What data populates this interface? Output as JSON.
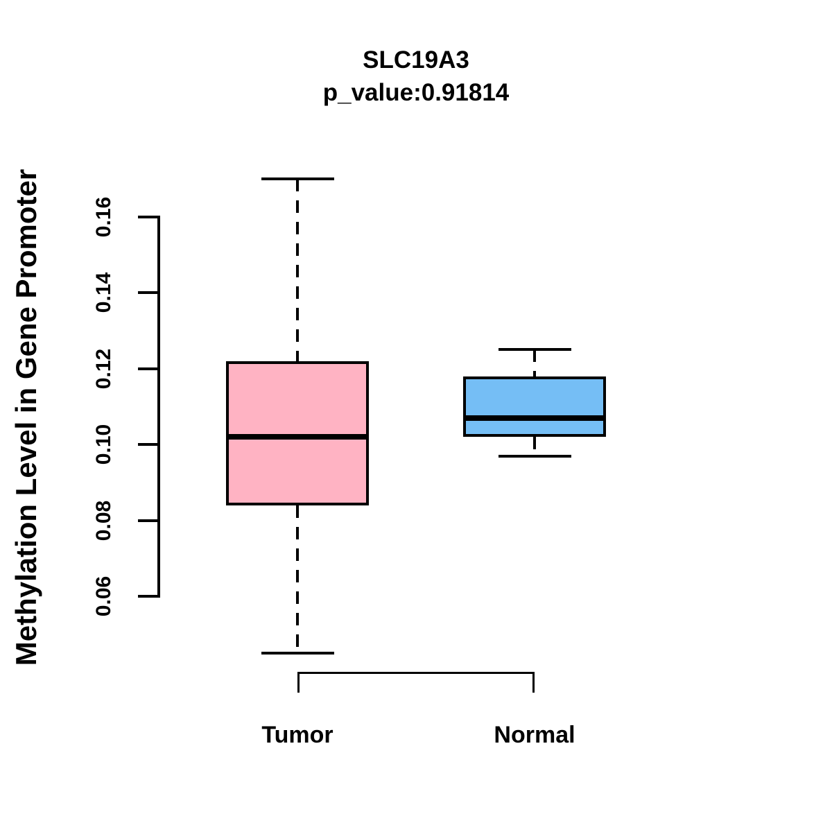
{
  "title": "SLC19A3",
  "subtitle": "p_value:0.91814",
  "y_axis": {
    "label": "Methylation Level in Gene Promoter",
    "ticks": [
      {
        "value": 0.16,
        "label": "0.16"
      },
      {
        "value": 0.14,
        "label": "0.14"
      },
      {
        "value": 0.12,
        "label": "0.12"
      },
      {
        "value": 0.1,
        "label": "0.10"
      },
      {
        "value": 0.08,
        "label": "0.08"
      },
      {
        "value": 0.06,
        "label": "0.06"
      }
    ]
  },
  "x_axis": {
    "categories": [
      "Tumor",
      "Normal"
    ]
  },
  "chart_data": {
    "type": "boxplot",
    "title": "SLC19A3",
    "subtitle": "p_value:0.91814",
    "ylabel": "Methylation Level in Gene Promoter",
    "xlabel": "",
    "categories": [
      "Tumor",
      "Normal"
    ],
    "series": [
      {
        "name": "Tumor",
        "fill_color": "#FFB3C3",
        "whisker_low": 0.045,
        "q1": 0.084,
        "median": 0.102,
        "q3": 0.122,
        "whisker_high": 0.17
      },
      {
        "name": "Normal",
        "fill_color": "#75BEF5",
        "whisker_low": 0.097,
        "q1": 0.102,
        "median": 0.107,
        "q3": 0.118,
        "whisker_high": 0.125
      }
    ],
    "y_ticks": [
      0.06,
      0.08,
      0.1,
      0.12,
      0.14,
      0.16
    ],
    "ylim": [
      0.044,
      0.172
    ],
    "grid": false,
    "legend": "none",
    "stroke_color": "#000000",
    "background_color": "#FFFFFF"
  }
}
